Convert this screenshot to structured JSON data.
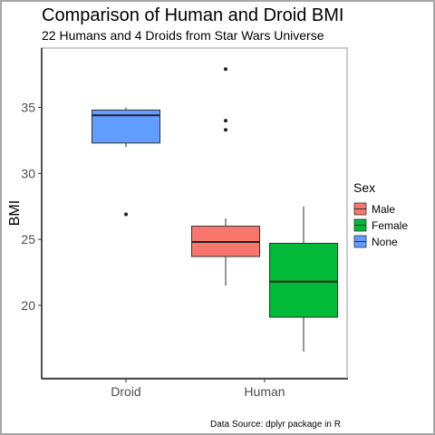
{
  "chart_data": {
    "type": "box",
    "title": "Comparison of Human and Droid BMI",
    "subtitle": "22 Humans and 4 Droids from Star Wars Universe",
    "xlabel": "",
    "ylabel": "BMI",
    "caption": "Data Source: dplyr package in R",
    "categories": [
      "Droid",
      "Human"
    ],
    "ylim": [
      14.5,
      39.5
    ],
    "yticks": [
      20,
      25,
      30,
      35
    ],
    "grid": false,
    "legend": {
      "title": "Sex",
      "placement": "right",
      "entries": [
        {
          "label": "Male",
          "color": "#F8766D"
        },
        {
          "label": "Female",
          "color": "#00BA38"
        },
        {
          "label": "None",
          "color": "#619CFF"
        }
      ]
    },
    "series": [
      {
        "category": "Droid",
        "group": "None",
        "color": "#619CFF",
        "min": 32.0,
        "q1": 32.3,
        "median": 34.4,
        "q3": 34.8,
        "max": 35.0,
        "outliers": [
          26.9
        ]
      },
      {
        "category": "Human",
        "group": "Male",
        "color": "#F8766D",
        "min": 21.5,
        "q1": 23.7,
        "median": 24.8,
        "q3": 26.0,
        "max": 26.6,
        "outliers": [
          33.3,
          34.0,
          37.9
        ]
      },
      {
        "category": "Human",
        "group": "Female",
        "color": "#00BA38",
        "min": 16.5,
        "q1": 19.1,
        "median": 21.8,
        "q3": 24.7,
        "max": 27.5,
        "outliers": []
      }
    ]
  }
}
